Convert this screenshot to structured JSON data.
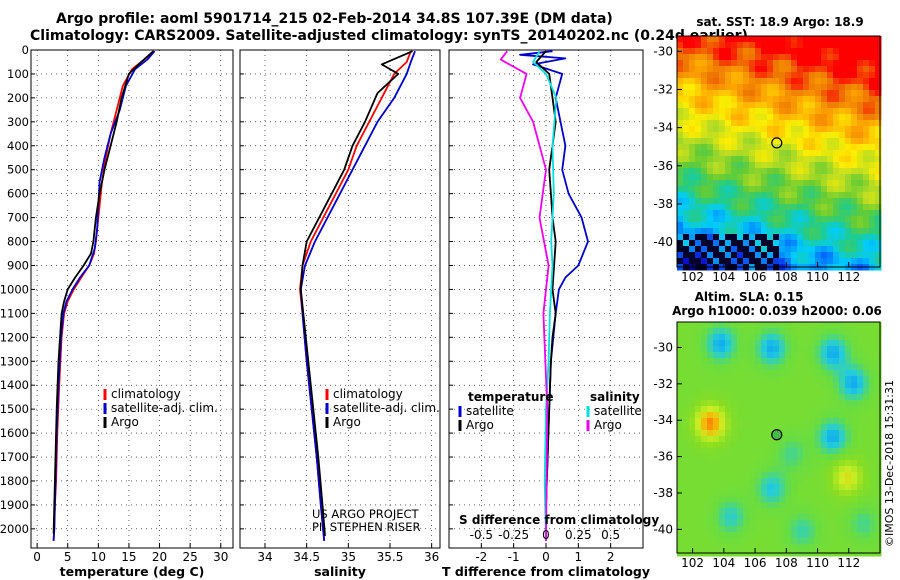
{
  "header": {
    "line1": "Argo profile: aoml 5901714_215 02-Feb-2014 34.8S 107.39E (DM data)",
    "line2": "Climatology: CARS2009. Satellite-adjusted climatology: synTS_20140202.nc (0.24d earlier)"
  },
  "colors": {
    "climatology": "#ff0000",
    "satellite": "#0000cc",
    "argo": "#000000",
    "salinity_satellite": "#00e0e0",
    "salinity_argo": "#ee00ee"
  },
  "chart_data": [
    {
      "type": "line",
      "id": "temperature",
      "xlabel": "temperature (deg C)",
      "xlim": [
        -1,
        32
      ],
      "xticks": [
        0,
        5,
        10,
        15,
        20,
        25,
        30
      ],
      "ylim": [
        0,
        2080
      ],
      "yticks": [
        0,
        100,
        200,
        300,
        400,
        500,
        600,
        700,
        800,
        900,
        1000,
        1100,
        1200,
        1300,
        1400,
        1500,
        1600,
        1700,
        1800,
        1900,
        2000
      ],
      "legend": [
        "climatology",
        "satellite-adj. clim.",
        "Argo"
      ],
      "series": [
        {
          "name": "climatology",
          "color": "#ff0000",
          "x": [
            19,
            17.5,
            15.5,
            14.0,
            13.0,
            12.0,
            11.2,
            10.6,
            10.2,
            10.0,
            9.8,
            9.6,
            9.3,
            8.5,
            7.2,
            6.0,
            5.0,
            4.4,
            4.0,
            3.6,
            3.3,
            3.1,
            2.9,
            2.8,
            2.7
          ],
          "y": [
            5,
            40,
            80,
            150,
            250,
            350,
            450,
            550,
            650,
            700,
            750,
            800,
            850,
            900,
            950,
            1000,
            1050,
            1100,
            1200,
            1400,
            1600,
            1800,
            1900,
            2000,
            2050
          ]
        },
        {
          "name": "satellite-adj. clim.",
          "color": "#0000cc",
          "x": [
            19.2,
            18.0,
            16.0,
            14.5,
            13.5,
            12.0,
            11.0,
            10.2,
            10.0,
            9.8,
            9.4,
            8.5,
            7.0,
            5.8,
            4.8,
            4.3,
            3.9,
            3.5,
            3.2,
            3.0,
            2.8,
            2.7
          ],
          "y": [
            5,
            40,
            80,
            150,
            250,
            350,
            450,
            550,
            650,
            750,
            830,
            900,
            950,
            1000,
            1050,
            1100,
            1200,
            1400,
            1600,
            1800,
            2000,
            2050
          ]
        },
        {
          "name": "Argo",
          "color": "#000000",
          "x": [
            19.0,
            17.0,
            15.0,
            13.8,
            13.0,
            12.0,
            11.0,
            10.2,
            9.6,
            9.2,
            8.8,
            7.6,
            6.2,
            5.0,
            4.4,
            4.0,
            3.5,
            3.2,
            3.0,
            2.8,
            2.7
          ],
          "y": [
            5,
            50,
            100,
            200,
            300,
            400,
            500,
            600,
            700,
            800,
            850,
            900,
            950,
            1000,
            1050,
            1100,
            1300,
            1500,
            1700,
            1900,
            2020
          ]
        }
      ]
    },
    {
      "type": "line",
      "id": "salinity",
      "xlabel": "salinity",
      "xlim": [
        33.7,
        36.1
      ],
      "xticks": [
        34,
        34.5,
        35,
        35.5,
        36
      ],
      "ylim": [
        0,
        2080
      ],
      "legend": [
        "climatology",
        "satellite-adj. clim.",
        "Argo"
      ],
      "annotations": [
        "US ARGO PROJECT",
        "PI: STEPHEN RISER"
      ],
      "series": [
        {
          "name": "climatology",
          "color": "#ff0000",
          "x": [
            35.75,
            35.7,
            35.55,
            35.4,
            35.25,
            35.1,
            35.0,
            34.85,
            34.7,
            34.55,
            34.45,
            34.42,
            34.45,
            34.5,
            34.56,
            34.62,
            34.67,
            34.71
          ],
          "y": [
            5,
            50,
            100,
            200,
            300,
            400,
            500,
            600,
            700,
            800,
            900,
            1000,
            1100,
            1300,
            1500,
            1700,
            1900,
            2050
          ]
        },
        {
          "name": "satellite-adj. clim.",
          "color": "#0000cc",
          "x": [
            35.8,
            35.75,
            35.7,
            35.55,
            35.35,
            35.2,
            35.05,
            34.9,
            34.75,
            34.6,
            34.48,
            34.43,
            34.45,
            34.5,
            34.56,
            34.62,
            34.67,
            34.71
          ],
          "y": [
            5,
            50,
            100,
            200,
            300,
            400,
            500,
            600,
            700,
            800,
            900,
            1000,
            1100,
            1300,
            1500,
            1700,
            1900,
            2050
          ]
        },
        {
          "name": "Argo",
          "color": "#000000",
          "x": [
            35.77,
            35.4,
            35.6,
            35.35,
            35.2,
            35.05,
            34.95,
            34.8,
            34.65,
            34.5,
            34.45,
            34.43,
            34.46,
            34.52,
            34.58,
            34.64,
            34.69,
            34.72
          ],
          "y": [
            5,
            60,
            100,
            180,
            300,
            400,
            500,
            600,
            700,
            800,
            900,
            1000,
            1100,
            1300,
            1500,
            1700,
            1900,
            2030
          ]
        }
      ]
    },
    {
      "type": "line",
      "id": "differences",
      "xlabel": "T difference from climatology",
      "xlabel2": "S difference from climatology",
      "xlim": [
        -3,
        3
      ],
      "xticks": [
        -2,
        -1,
        0,
        1,
        2
      ],
      "xticks2_labels": [
        "-0.5",
        "-0.25",
        "0",
        "0.25",
        "0.5"
      ],
      "xticks2_values": [
        -0.5,
        -0.25,
        0,
        0.25,
        0.5
      ],
      "ylim": [
        0,
        2080
      ],
      "legend_left_title": "temperature",
      "legend_right_title": "salinity",
      "legend_left": [
        "satellite",
        "Argo"
      ],
      "legend_right": [
        "satellite",
        "Argo"
      ],
      "series": [
        {
          "name": "temperature satellite",
          "color": "#0000cc",
          "x": [
            0.2,
            -0.8,
            0.6,
            -0.4,
            0.5,
            0.3,
            0.45,
            0.6,
            0.5,
            0.7,
            1.1,
            1.3,
            1.0,
            0.6,
            0.4,
            0.3,
            0.15,
            0.1,
            0.05,
            0.0,
            0.0
          ],
          "y": [
            5,
            20,
            35,
            60,
            100,
            200,
            300,
            400,
            500,
            600,
            700,
            800,
            900,
            950,
            1000,
            1100,
            1300,
            1500,
            1700,
            1900,
            2050
          ]
        },
        {
          "name": "temperature Argo",
          "color": "#000000",
          "x": [
            0.0,
            -0.3,
            0.1,
            0.2,
            0.3,
            0.2,
            0.1,
            0.15,
            0.2,
            0.3,
            0.25,
            0.2,
            0.3,
            0.2,
            0.15,
            0.1,
            0.05,
            0.0,
            0.0
          ],
          "y": [
            5,
            50,
            100,
            200,
            300,
            400,
            500,
            600,
            700,
            800,
            900,
            1000,
            1100,
            1200,
            1300,
            1500,
            1700,
            1900,
            2050
          ]
        },
        {
          "name": "salinity satellite",
          "color": "#00e0e0",
          "x": [
            -0.05,
            -0.1,
            0.0,
            0.08,
            0.05,
            0.06,
            0.04,
            0.05,
            0.03,
            0.02,
            0.0,
            -0.01,
            0.0
          ],
          "y": [
            5,
            50,
            100,
            200,
            400,
            600,
            800,
            900,
            1100,
            1300,
            1500,
            1800,
            2050
          ]
        },
        {
          "name": "salinity Argo",
          "color": "#ee00ee",
          "x": [
            -0.3,
            -0.35,
            -0.15,
            -0.2,
            -0.1,
            0.0,
            -0.05,
            0.02,
            -0.02,
            0.01,
            0.0
          ],
          "y": [
            5,
            40,
            100,
            200,
            300,
            500,
            700,
            900,
            1100,
            1500,
            2050
          ]
        }
      ]
    },
    {
      "type": "heatmap",
      "id": "sst_map",
      "title": "sat. SST: 18.9 Argo: 18.9",
      "xticks": [
        102,
        104,
        106,
        108,
        110,
        112
      ],
      "yticks": [
        -30,
        -32,
        -34,
        -36,
        -38,
        -40
      ],
      "xlim": [
        101,
        114
      ],
      "ylim": [
        -41.3,
        -29.2
      ],
      "argo_position": {
        "lon": 107.39,
        "lat": -34.8
      }
    },
    {
      "type": "heatmap",
      "id": "sla_map",
      "title": "Altim. SLA: 0.15",
      "subtitle": "Argo h1000: 0.039 h2000: 0.06",
      "xticks": [
        102,
        104,
        106,
        108,
        110,
        112
      ],
      "yticks": [
        -30,
        -32,
        -34,
        -36,
        -38,
        -40
      ],
      "xlim": [
        101,
        114
      ],
      "ylim": [
        -41.3,
        -28.6
      ],
      "argo_position": {
        "lon": 107.39,
        "lat": -34.8
      }
    }
  ],
  "watermark": "©IMOS 13-Dec-2018 15:31:31"
}
